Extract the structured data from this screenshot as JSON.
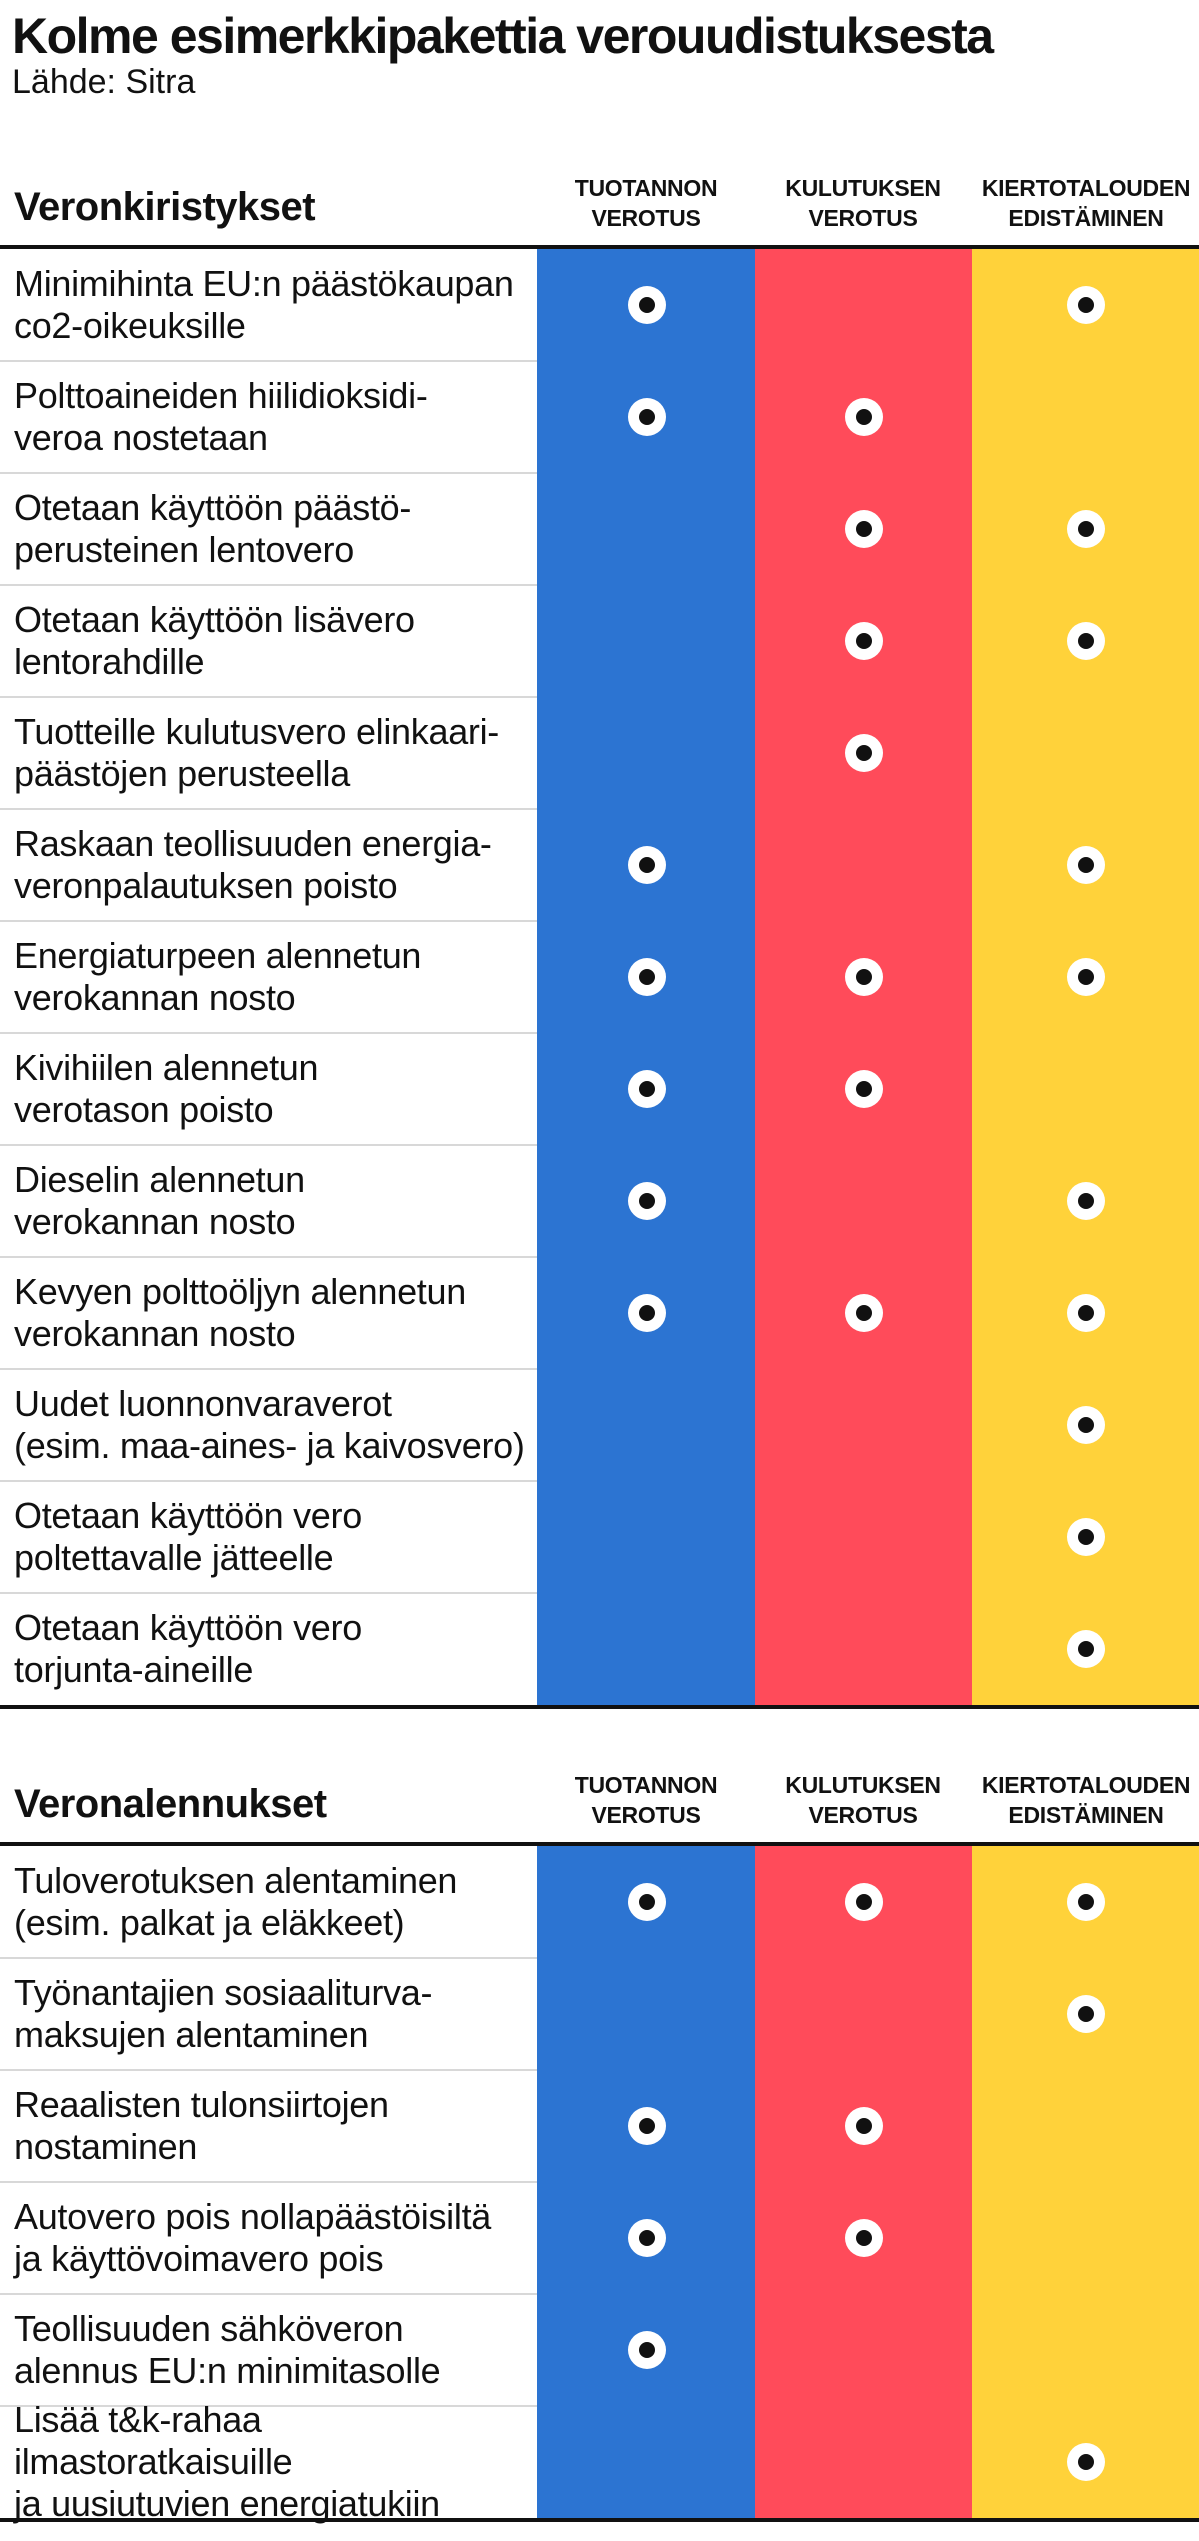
{
  "title": "Kolme esimerkkipakettia verouudistuksesta",
  "source": "Lähde: Sitra",
  "colors": {
    "production": "#2c74d2",
    "consumption": "#ff4b5a",
    "circular": "#ffd23a"
  },
  "columns": [
    {
      "line1": "TUOTANNON",
      "line2": "VEROTUS"
    },
    {
      "line1": "KULUTUKSEN",
      "line2": "VEROTUS"
    },
    {
      "line1": "KIERTOTALOUDEN",
      "line2": "EDISTÄMINEN"
    }
  ],
  "sections": [
    {
      "title": "Veronkiristykset",
      "rows": [
        {
          "line1": "Minimihinta EU:n päästökaupan",
          "line2": "co2-oikeuksille",
          "marks": [
            true,
            false,
            true
          ]
        },
        {
          "line1": "Polttoaineiden hiilidioksidi-",
          "line2": "veroa nostetaan",
          "marks": [
            true,
            true,
            false
          ]
        },
        {
          "line1": "Otetaan käyttöön päästö-",
          "line2": "perusteinen lentovero",
          "marks": [
            false,
            true,
            true
          ]
        },
        {
          "line1": "Otetaan käyttöön lisävero",
          "line2": "lentorahdille",
          "marks": [
            false,
            true,
            true
          ]
        },
        {
          "line1": "Tuotteille kulutusvero elinkaari-",
          "line2": "päästöjen perusteella",
          "marks": [
            false,
            true,
            false
          ]
        },
        {
          "line1": "Raskaan teollisuuden energia-",
          "line2": "veronpalautuksen poisto",
          "marks": [
            true,
            false,
            true
          ]
        },
        {
          "line1": "Energiaturpeen alennetun",
          "line2": "verokannan nosto",
          "marks": [
            true,
            true,
            true
          ]
        },
        {
          "line1": "Kivihiilen alennetun",
          "line2": "verotason poisto",
          "marks": [
            true,
            true,
            false
          ]
        },
        {
          "line1": "Dieselin alennetun",
          "line2": "verokannan nosto",
          "marks": [
            true,
            false,
            true
          ]
        },
        {
          "line1": "Kevyen polttoöljyn alennetun",
          "line2": "verokannan nosto",
          "marks": [
            true,
            true,
            true
          ]
        },
        {
          "line1": "Uudet luonnonvaraverot",
          "line2": "(esim. maa-aines- ja kaivosvero)",
          "marks": [
            false,
            false,
            true
          ]
        },
        {
          "line1": "Otetaan käyttöön vero",
          "line2": "poltettavalle jätteelle",
          "marks": [
            false,
            false,
            true
          ]
        },
        {
          "line1": "Otetaan käyttöön vero",
          "line2": "torjunta-aineille",
          "marks": [
            false,
            false,
            true
          ]
        }
      ]
    },
    {
      "title": "Veronalennukset",
      "rows": [
        {
          "line1": "Tuloverotuksen alentaminen",
          "line2": "(esim. palkat ja eläkkeet)",
          "marks": [
            true,
            true,
            true
          ]
        },
        {
          "line1": "Työnantajien sosiaaliturva-",
          "line2": "maksujen alentaminen",
          "marks": [
            false,
            false,
            true
          ]
        },
        {
          "line1": "Reaalisten tulonsiirtojen",
          "line2": "nostaminen",
          "marks": [
            true,
            true,
            false
          ]
        },
        {
          "line1": "Autovero pois nollapäästöisiltä",
          "line2": "ja käyttövoimavero pois",
          "marks": [
            true,
            true,
            false
          ]
        },
        {
          "line1": "Teollisuuden sähköveron",
          "line2": "alennus EU:n minimitasolle",
          "marks": [
            true,
            false,
            false
          ]
        },
        {
          "line1": "Lisää t&k-rahaa ilmastoratkaisuille",
          "line2": "ja uusiutuvien energiatukiin",
          "marks": [
            false,
            false,
            true
          ]
        }
      ]
    }
  ]
}
